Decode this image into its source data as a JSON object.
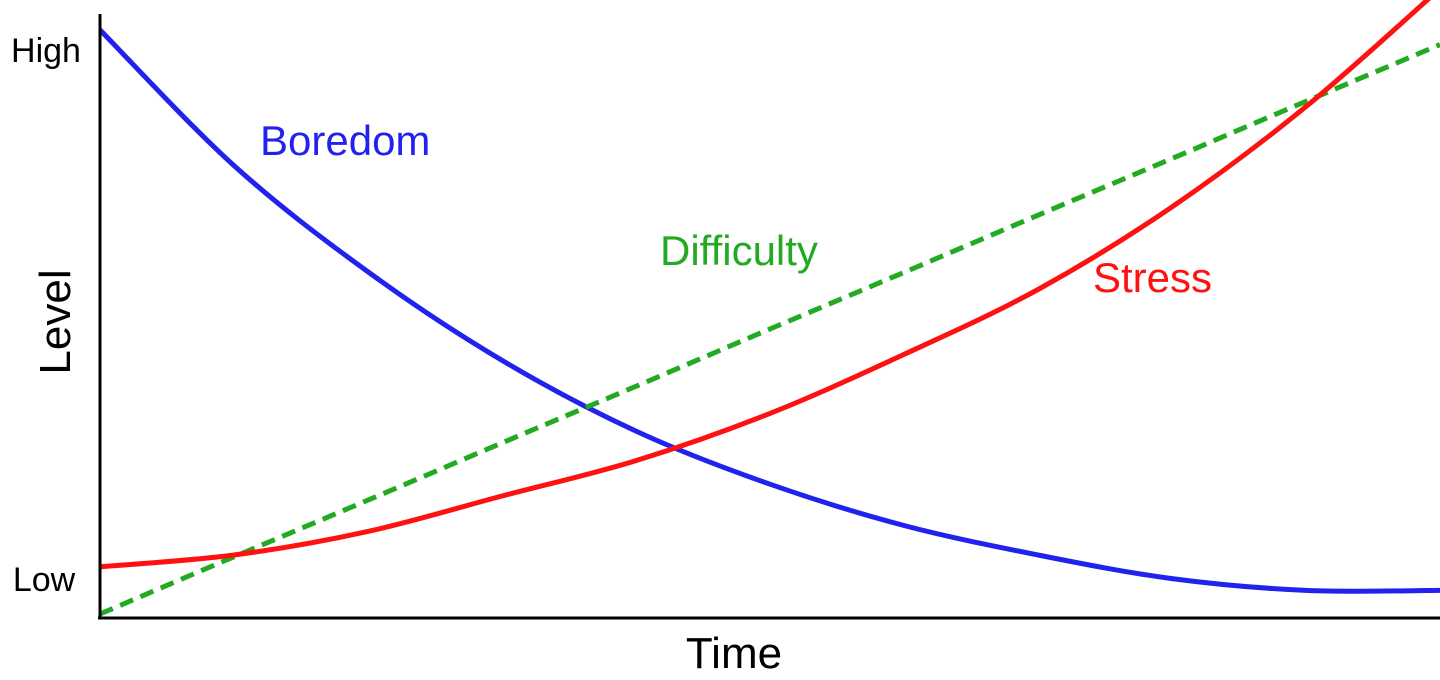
{
  "chart_data": {
    "type": "line",
    "xlabel": "Time",
    "ylabel": "Level",
    "y_tick_labels": {
      "top": "High",
      "bottom": "Low"
    },
    "xlim": [
      0,
      1
    ],
    "ylim": [
      0,
      1
    ],
    "grid": false,
    "legend": "none (series labeled directly on plot)",
    "x": [
      0,
      0.1,
      0.2,
      0.3,
      0.4,
      0.5,
      0.6,
      0.7,
      0.8,
      0.9,
      1.0
    ],
    "series": [
      {
        "name": "Boredom",
        "color": "#2222ee",
        "dash": "solid",
        "values": [
          0.99,
          0.76,
          0.58,
          0.43,
          0.31,
          0.22,
          0.15,
          0.1,
          0.06,
          0.04,
          0.04
        ]
      },
      {
        "name": "Difficulty",
        "color": "#22aa22",
        "dash": "dashed",
        "values": [
          0.0,
          0.097,
          0.193,
          0.29,
          0.386,
          0.483,
          0.579,
          0.676,
          0.772,
          0.869,
          0.965
        ]
      },
      {
        "name": "Stress",
        "color": "#ff1111",
        "dash": "solid",
        "values": [
          0.08,
          0.1,
          0.14,
          0.2,
          0.26,
          0.34,
          0.44,
          0.55,
          0.69,
          0.86,
          1.06
        ]
      }
    ]
  }
}
